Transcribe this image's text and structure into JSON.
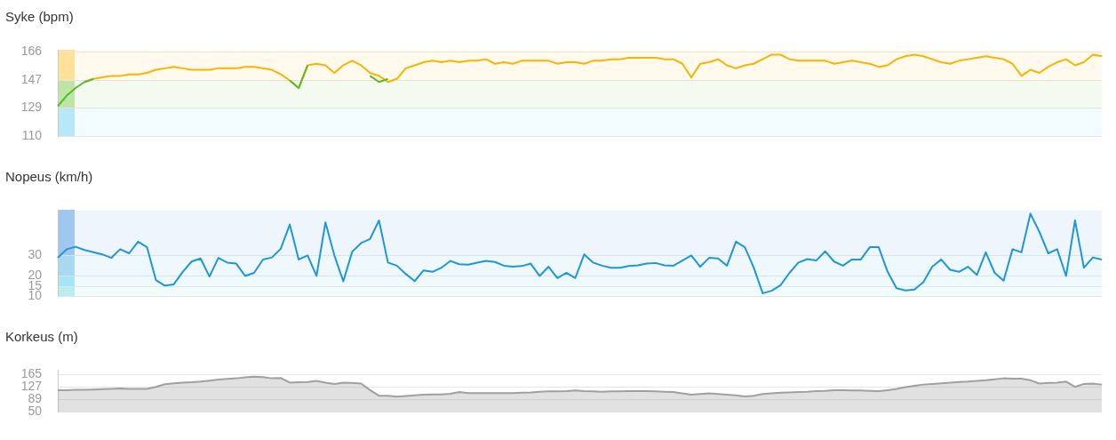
{
  "chart_data": [
    {
      "type": "line",
      "title": "Syke (bpm)",
      "categories": [
        null,
        null,
        null,
        null,
        null,
        null,
        null,
        null,
        null,
        null,
        null,
        null,
        null,
        null,
        null,
        null,
        null,
        null,
        null,
        null,
        null,
        null,
        null,
        null,
        null,
        null,
        null,
        null,
        null,
        null,
        null,
        null,
        null,
        null,
        null,
        null,
        null,
        null,
        null,
        null,
        null,
        null,
        null,
        null,
        null,
        null,
        null,
        null,
        null,
        null,
        null,
        null,
        null,
        null,
        null,
        null,
        null,
        null,
        null,
        null,
        null,
        null,
        null,
        null,
        null,
        null,
        null,
        null,
        null,
        null,
        null,
        null,
        null,
        null,
        null,
        null,
        null,
        null,
        null,
        null,
        null,
        null,
        null,
        null,
        null,
        null,
        null,
        null,
        null,
        null,
        null,
        null,
        null,
        null,
        null,
        null,
        null,
        null,
        null,
        null,
        null,
        null,
        null,
        null,
        null,
        null,
        null,
        null,
        null,
        null,
        null,
        null,
        null,
        null,
        null,
        null,
        null,
        null
      ],
      "series": [
        {
          "color": "#5cb82a",
          "values": [
            130,
            137,
            142,
            146,
            148,
            null,
            null,
            null,
            null,
            null,
            null,
            null,
            null,
            null,
            null,
            null,
            null,
            null,
            null,
            null,
            null,
            null,
            null,
            null,
            null,
            null,
            147,
            142,
            157,
            null,
            null,
            null,
            null,
            null,
            null,
            150,
            146,
            148,
            null,
            null,
            null,
            null,
            null,
            null,
            null,
            null,
            null,
            null,
            null,
            null,
            null,
            null,
            null,
            null,
            null,
            null,
            null,
            null,
            null,
            null,
            null,
            null,
            null,
            null,
            null,
            null,
            null,
            null,
            null,
            null,
            null,
            null,
            null,
            null,
            null,
            null,
            null,
            null,
            null,
            null,
            null,
            null,
            null,
            null,
            null,
            null,
            null,
            null,
            null,
            null,
            null,
            null,
            null,
            null,
            null,
            null,
            null,
            null,
            null,
            null,
            null,
            null,
            null,
            null,
            null,
            null,
            null,
            null,
            null,
            null,
            null,
            null,
            null,
            null,
            null,
            null,
            null,
            null
          ]
        },
        {
          "color": "#f7b500",
          "values": [
            null,
            null,
            null,
            146,
            148,
            149,
            150,
            150,
            151,
            151,
            152,
            154,
            155,
            156,
            155,
            154,
            154,
            154,
            155,
            155,
            155,
            156,
            156,
            155,
            154,
            151,
            147,
            142,
            157,
            158,
            157,
            152,
            157,
            160,
            157,
            152,
            150,
            146,
            148,
            155,
            157,
            159,
            160,
            159,
            160,
            159,
            160,
            160,
            161,
            158,
            159,
            158,
            160,
            160,
            160,
            160,
            158,
            159,
            159,
            158,
            160,
            160,
            161,
            161,
            162,
            162,
            162,
            162,
            161,
            161,
            158,
            149,
            158,
            159,
            161,
            157,
            155,
            157,
            158,
            161,
            164,
            164,
            161,
            160,
            160,
            160,
            160,
            158,
            159,
            160,
            159,
            158,
            156,
            157,
            161,
            163,
            164,
            163,
            161,
            159,
            158,
            160,
            161,
            162,
            163,
            162,
            161,
            158,
            150,
            154,
            152,
            156,
            159,
            161,
            157,
            159,
            164,
            163
          ]
        }
      ],
      "ylim": [
        110,
        167
      ],
      "yticks": [
        110,
        129,
        147,
        166
      ],
      "grid": "y",
      "tick_labels": "y",
      "bands": [
        {
          "axis": "y",
          "from": 110,
          "to": 129,
          "color": "#b9e8f7"
        },
        {
          "axis": "y",
          "from": 129,
          "to": 147,
          "color": "#bfe6a8"
        },
        {
          "axis": "y",
          "from": 147,
          "to": 167,
          "color": "#ffe199"
        }
      ]
    },
    {
      "type": "line",
      "title": "Nopeus (km/h)",
      "categories": [
        null,
        null,
        null,
        null,
        null,
        null,
        null,
        null,
        null,
        null,
        null,
        null,
        null,
        null,
        null,
        null,
        null,
        null,
        null,
        null,
        null,
        null,
        null,
        null,
        null,
        null,
        null,
        null,
        null,
        null,
        null,
        null,
        null,
        null,
        null,
        null,
        null,
        null,
        null,
        null,
        null,
        null,
        null,
        null,
        null,
        null,
        null,
        null,
        null,
        null,
        null,
        null,
        null,
        null,
        null,
        null,
        null,
        null,
        null,
        null,
        null,
        null,
        null,
        null,
        null,
        null,
        null,
        null,
        null,
        null,
        null,
        null,
        null,
        null,
        null,
        null,
        null,
        null,
        null,
        null,
        null,
        null,
        null,
        null,
        null,
        null,
        null,
        null,
        null,
        null,
        null,
        null,
        null,
        null,
        null,
        null,
        null,
        null,
        null,
        null,
        null,
        null,
        null,
        null,
        null,
        null,
        null,
        null,
        null,
        null,
        null,
        null,
        null,
        null,
        null,
        null,
        null,
        null
      ],
      "series": [
        {
          "color": "#1e96da",
          "values": [
            28.8,
            33,
            34.2,
            32.6,
            31.5,
            30.5,
            28.8,
            33,
            31,
            36.7,
            34,
            18,
            15.3,
            15.9,
            22,
            27,
            28.5,
            19.7,
            28.8,
            26.5,
            26,
            20,
            21.5,
            28,
            29,
            33.3,
            45,
            28,
            30,
            20,
            46,
            30,
            17.4,
            31.8,
            36,
            38,
            47,
            26.5,
            25,
            21,
            17.5,
            22.7,
            22,
            24,
            27.3,
            25.7,
            25.5,
            26.5,
            27.3,
            26.8,
            25,
            24.5,
            24.8,
            26,
            20,
            24.5,
            19,
            21.5,
            19,
            30.5,
            26.5,
            25,
            24,
            24,
            24.8,
            25.2,
            26,
            26.3,
            25.2,
            25,
            27.5,
            30,
            24.5,
            28.8,
            28.5,
            25,
            36.7,
            34,
            24,
            11.6,
            12.8,
            15.5,
            21.5,
            26.5,
            28.2,
            27.5,
            32,
            27,
            25,
            28,
            28,
            34,
            34,
            22,
            14,
            13,
            13.4,
            17,
            24.5,
            28,
            23,
            22,
            24.5,
            20.5,
            31.5,
            21.5,
            17.7,
            33,
            31.5,
            50.3,
            41.5,
            31,
            33,
            20,
            47,
            24,
            29,
            28
          ]
        }
      ],
      "ylim": [
        10,
        52
      ],
      "yticks": [
        10,
        15,
        20,
        30
      ],
      "grid": "y",
      "tick_labels": "y",
      "bands": [
        {
          "axis": "y",
          "from": 10,
          "to": 15,
          "color": "#b7efee"
        },
        {
          "axis": "y",
          "from": 15,
          "to": 20,
          "color": "#a6e6f6"
        },
        {
          "axis": "y",
          "from": 20,
          "to": 30,
          "color": "#a9d9f1"
        },
        {
          "axis": "y",
          "from": 30,
          "to": 52,
          "color": "#a0c8ef"
        }
      ]
    },
    {
      "type": "area",
      "title": "Korkeus (m)",
      "categories": [
        null,
        null,
        null,
        null,
        null,
        null,
        null,
        null,
        null,
        null,
        null,
        null,
        null,
        null,
        null,
        null,
        null,
        null,
        null,
        null,
        null,
        null,
        null,
        null,
        null,
        null,
        null,
        null,
        null,
        null,
        null,
        null,
        null,
        null,
        null,
        null,
        null,
        null,
        null,
        null,
        null,
        null,
        null,
        null,
        null,
        null,
        null,
        null,
        null,
        null,
        null,
        null,
        null,
        null,
        null,
        null,
        null,
        null,
        null,
        null,
        null,
        null,
        null,
        null,
        null,
        null,
        null,
        null,
        null,
        null,
        null,
        null,
        null,
        null,
        null,
        null,
        null,
        null,
        null,
        null,
        null,
        null,
        null,
        null,
        null,
        null,
        null,
        null,
        null,
        null,
        null,
        null,
        null,
        null,
        null,
        null,
        null,
        null,
        null,
        null,
        null,
        null,
        null,
        null,
        null,
        null,
        null,
        null,
        null,
        null,
        null,
        null,
        null,
        null,
        null,
        null,
        null,
        null
      ],
      "series": [
        {
          "color": "#a0a0a0",
          "values": [
            117,
            117,
            118,
            118,
            119,
            120,
            121,
            122,
            121,
            121,
            121,
            127,
            135,
            138,
            140,
            141,
            143,
            146,
            149,
            151,
            153,
            156,
            158,
            157,
            153,
            154,
            140,
            141,
            142,
            145,
            140,
            136,
            140,
            139,
            137,
            117,
            100,
            100,
            97,
            99,
            101,
            103,
            104,
            104,
            106,
            111,
            108,
            108,
            108,
            108,
            108,
            108,
            109,
            110,
            112,
            113,
            113,
            114,
            116,
            114,
            113,
            112,
            113,
            113,
            114,
            114,
            114,
            113,
            112,
            111,
            107,
            103,
            105,
            107,
            105,
            103,
            101,
            98,
            100,
            105,
            107,
            109,
            110,
            111,
            112,
            114,
            115,
            117,
            117,
            116,
            116,
            115,
            114,
            117,
            121,
            126,
            130,
            134,
            136,
            138,
            140,
            142,
            143,
            145,
            147,
            150,
            153,
            152,
            152,
            147,
            137,
            139,
            140,
            143,
            127,
            136,
            137,
            134
          ]
        }
      ],
      "ylim": [
        50,
        178
      ],
      "yticks": [
        50,
        89,
        127,
        165
      ],
      "grid": "y",
      "tick_labels": "y"
    }
  ]
}
